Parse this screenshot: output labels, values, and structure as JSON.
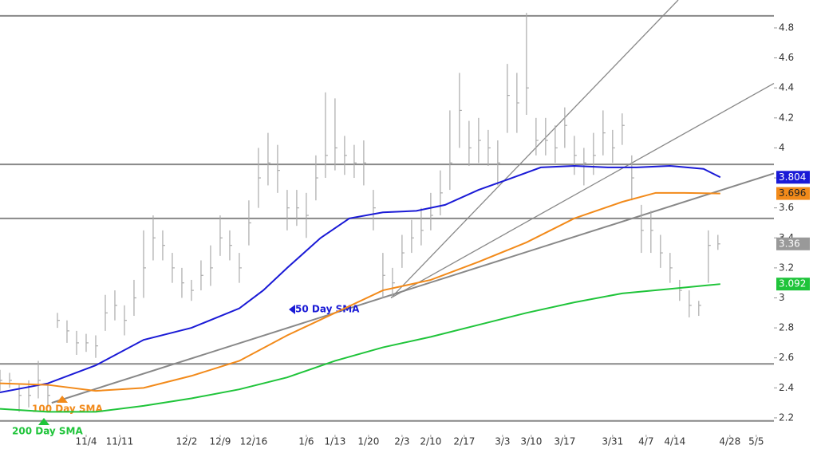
{
  "chart_data": {
    "type": "ohlc",
    "xlim": [
      0,
      161.7
    ],
    "ylim": [
      2.088,
      4.986
    ],
    "yticks": [
      2.2,
      2.4,
      2.6,
      2.8,
      3,
      3.2,
      3.4,
      3.6,
      3.8,
      4,
      4.2,
      4.4,
      4.6,
      4.8
    ],
    "xticks": [
      {
        "value": 18,
        "label": "11/4"
      },
      {
        "value": 25,
        "label": "11/11"
      },
      {
        "value": 39,
        "label": "12/2"
      },
      {
        "value": 46,
        "label": "12/9"
      },
      {
        "value": 53,
        "label": "12/16"
      },
      {
        "value": 64,
        "label": "1/6"
      },
      {
        "value": 70,
        "label": "1/13"
      },
      {
        "value": 77,
        "label": "1/20"
      },
      {
        "value": 84,
        "label": "2/3"
      },
      {
        "value": 90,
        "label": "2/10"
      },
      {
        "value": 97,
        "label": "2/17"
      },
      {
        "value": 105,
        "label": "3/3"
      },
      {
        "value": 111,
        "label": "3/10"
      },
      {
        "value": 118,
        "label": "3/17"
      },
      {
        "value": 128,
        "label": "3/31"
      },
      {
        "value": 135,
        "label": "4/7"
      },
      {
        "value": 141,
        "label": "4/14"
      },
      {
        "value": 152.5,
        "label": "4/28"
      },
      {
        "value": 158,
        "label": "5/5"
      }
    ],
    "bar_color": "#aaaaaa",
    "bars": {
      "x": [
        0,
        2,
        4,
        6,
        8,
        10,
        12,
        14,
        16,
        18,
        20,
        22,
        24,
        26,
        28,
        30,
        32,
        34,
        36,
        38,
        40,
        42,
        44,
        46,
        48,
        50,
        52,
        54,
        56,
        58,
        60,
        62,
        64,
        66,
        68,
        70,
        72,
        74,
        76,
        78,
        80,
        82,
        84,
        86,
        88,
        90,
        92,
        94,
        96,
        98,
        100,
        102,
        104,
        106,
        108,
        110,
        112,
        114,
        116,
        118,
        120,
        122,
        124,
        126,
        128,
        130,
        132,
        134,
        136,
        138,
        140,
        142,
        144,
        146,
        148,
        150
      ],
      "high": [
        2.52,
        2.5,
        2.42,
        2.45,
        2.58,
        2.42,
        2.9,
        2.85,
        2.78,
        2.76,
        2.75,
        3.02,
        3.05,
        2.95,
        3.12,
        3.45,
        3.55,
        3.45,
        3.3,
        3.2,
        3.12,
        3.25,
        3.35,
        3.55,
        3.45,
        3.3,
        3.65,
        4.0,
        4.1,
        4.02,
        3.72,
        3.72,
        3.7,
        3.95,
        4.37,
        4.33,
        4.08,
        4.02,
        4.05,
        3.72,
        3.3,
        3.2,
        3.42,
        3.52,
        3.6,
        3.7,
        3.85,
        4.25,
        4.5,
        4.18,
        4.2,
        4.12,
        4.05,
        4.56,
        4.5,
        4.9,
        4.2,
        4.2,
        4.15,
        4.27,
        4.08,
        4.0,
        4.1,
        4.25,
        4.12,
        4.23,
        3.95,
        3.62,
        3.58,
        3.42,
        3.3,
        3.12,
        3.05,
        2.98,
        3.45,
        3.42
      ],
      "low": [
        2.38,
        2.4,
        2.24,
        2.27,
        2.33,
        2.27,
        2.8,
        2.7,
        2.62,
        2.64,
        2.6,
        2.78,
        2.85,
        2.75,
        2.88,
        3.0,
        3.25,
        3.25,
        3.1,
        3.0,
        2.98,
        3.05,
        3.08,
        3.28,
        3.25,
        3.1,
        3.35,
        3.6,
        3.75,
        3.7,
        3.45,
        3.48,
        3.4,
        3.65,
        3.8,
        3.85,
        3.82,
        3.8,
        3.75,
        3.45,
        3.0,
        3.0,
        3.2,
        3.3,
        3.35,
        3.45,
        3.55,
        3.72,
        4.0,
        3.88,
        3.9,
        3.88,
        3.75,
        4.1,
        4.1,
        4.22,
        3.95,
        3.95,
        3.9,
        4.0,
        3.82,
        3.75,
        3.82,
        3.95,
        3.9,
        4.02,
        3.65,
        3.3,
        3.3,
        3.2,
        3.1,
        2.98,
        2.87,
        2.88,
        3.1,
        3.32
      ],
      "close": [
        2.45,
        2.45,
        2.35,
        2.35,
        2.45,
        2.35,
        2.85,
        2.78,
        2.7,
        2.7,
        2.68,
        2.9,
        2.95,
        2.85,
        3.0,
        3.2,
        3.4,
        3.35,
        3.2,
        3.1,
        3.05,
        3.15,
        3.2,
        3.4,
        3.35,
        3.2,
        3.5,
        3.8,
        3.9,
        3.85,
        3.6,
        3.6,
        3.55,
        3.8,
        3.95,
        4.0,
        3.95,
        3.9,
        3.9,
        3.6,
        3.15,
        3.1,
        3.3,
        3.4,
        3.45,
        3.55,
        3.7,
        3.9,
        4.25,
        4.0,
        4.05,
        4.0,
        3.9,
        4.35,
        4.3,
        4.4,
        4.05,
        4.05,
        4.0,
        4.15,
        3.95,
        3.9,
        3.95,
        4.1,
        4.0,
        4.15,
        3.8,
        3.45,
        3.45,
        3.3,
        3.2,
        3.05,
        2.95,
        2.95,
        3.35,
        3.36
      ]
    },
    "series": [
      {
        "name": "50 Day SMA",
        "color": "#1a1ad6",
        "x": [
          0,
          10,
          20,
          30,
          40,
          50,
          55,
          60,
          67,
          73,
          80,
          87,
          93,
          100,
          107,
          113,
          120,
          127,
          133,
          140,
          147,
          150.5
        ],
        "values": [
          2.37,
          2.43,
          2.55,
          2.72,
          2.8,
          2.93,
          3.05,
          3.2,
          3.4,
          3.53,
          3.57,
          3.58,
          3.62,
          3.72,
          3.8,
          3.87,
          3.88,
          3.87,
          3.87,
          3.88,
          3.86,
          3.804
        ]
      },
      {
        "name": "100 Day SMA",
        "color": "#f28a1a",
        "x": [
          0,
          10,
          20,
          30,
          40,
          50,
          60,
          70,
          80,
          90,
          100,
          110,
          120,
          130,
          137,
          143,
          150.5
        ],
        "values": [
          2.43,
          2.42,
          2.38,
          2.4,
          2.48,
          2.58,
          2.75,
          2.9,
          3.05,
          3.12,
          3.24,
          3.37,
          3.53,
          3.64,
          3.7,
          3.7,
          3.696
        ]
      },
      {
        "name": "200 Day SMA",
        "color": "#1fc43a",
        "x": [
          0,
          10,
          20,
          30,
          40,
          50,
          60,
          70,
          80,
          90,
          100,
          110,
          120,
          130,
          140,
          150.5
        ],
        "values": [
          2.26,
          2.24,
          2.24,
          2.28,
          2.33,
          2.39,
          2.47,
          2.58,
          2.67,
          2.74,
          2.82,
          2.9,
          2.97,
          3.03,
          3.06,
          3.092
        ]
      }
    ],
    "levels": [
      4.88,
      3.89,
      3.53,
      2.56,
      2.18
    ],
    "trendlines": [
      {
        "x": [
          10.8,
          161.7
        ],
        "y": [
          2.3,
          3.83
        ]
      },
      {
        "x": [
          81.7,
          141.7
        ],
        "y": [
          3.0,
          4.986
        ]
      },
      {
        "x": [
          81.7,
          161.7
        ],
        "y": [
          3.0,
          4.43
        ]
      }
    ]
  }
}
